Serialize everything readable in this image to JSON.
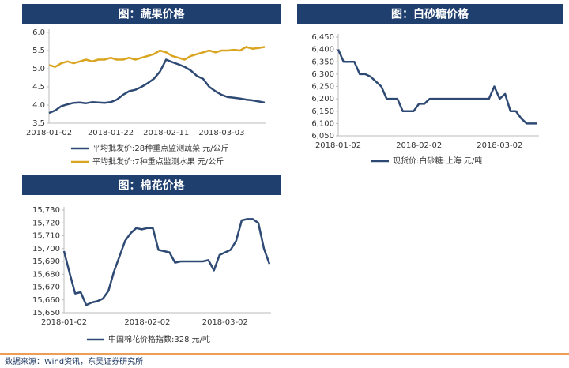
{
  "chart_data": [
    {
      "type": "line",
      "title": "图：蔬果价格",
      "categories": [
        "2018-01-02",
        null,
        null,
        null,
        null,
        null,
        null,
        null,
        null,
        null,
        "2018-01-22",
        null,
        null,
        null,
        null,
        null,
        null,
        null,
        null,
        "2018-02-11",
        null,
        null,
        null,
        null,
        null,
        null,
        null,
        null,
        "2018-03-03",
        null,
        null,
        null,
        null,
        null,
        null,
        null
      ],
      "series": [
        {
          "name": "平均批发价:28种重点监测蔬菜  元/公斤",
          "color": "#2e4a74",
          "values": [
            3.78,
            3.85,
            3.97,
            4.02,
            4.06,
            4.07,
            4.05,
            4.08,
            4.07,
            4.06,
            4.08,
            4.15,
            4.28,
            4.38,
            4.42,
            4.5,
            4.6,
            4.72,
            4.92,
            5.25,
            5.18,
            5.12,
            5.05,
            4.95,
            4.8,
            4.72,
            4.5,
            4.38,
            4.28,
            4.22,
            4.2,
            4.18,
            4.15,
            4.13,
            4.1,
            4.07
          ]
        },
        {
          "name": "平均批发价:7种重点监测水果  元/公斤",
          "color": "#d9a520",
          "values": [
            5.1,
            5.05,
            5.15,
            5.2,
            5.15,
            5.2,
            5.25,
            5.2,
            5.25,
            5.25,
            5.3,
            5.25,
            5.25,
            5.3,
            5.25,
            5.3,
            5.35,
            5.4,
            5.5,
            5.45,
            5.35,
            5.3,
            5.25,
            5.35,
            5.4,
            5.45,
            5.5,
            5.45,
            5.5,
            5.5,
            5.52,
            5.5,
            5.6,
            5.55,
            5.57,
            5.6
          ]
        }
      ],
      "ylim": [
        3.5,
        6.0
      ],
      "yticks": [
        3.5,
        {
          "value": 4,
          "label": "4.0"
        },
        4.5,
        {
          "value": 5,
          "label": "5.0"
        },
        5.5,
        {
          "value": 6,
          "label": "6.0"
        }
      ]
    },
    {
      "type": "line",
      "title": "图：白砂糖价格",
      "categories": [
        "2018-01-02",
        null,
        null,
        null,
        null,
        null,
        null,
        null,
        null,
        null,
        null,
        null,
        null,
        null,
        null,
        "2018-02-02",
        null,
        null,
        null,
        null,
        null,
        null,
        null,
        null,
        null,
        null,
        null,
        null,
        null,
        null,
        "2018-03-02",
        null,
        null,
        null,
        null,
        null,
        null,
        null
      ],
      "series": [
        {
          "name": "现货价:白砂糖:上海  元/吨",
          "color": "#2e4a74",
          "values": [
            6400,
            6350,
            6350,
            6350,
            6300,
            6300,
            6290,
            6270,
            6250,
            6200,
            6200,
            6200,
            6150,
            6150,
            6150,
            6180,
            6180,
            6200,
            6200,
            6200,
            6200,
            6200,
            6200,
            6200,
            6200,
            6200,
            6200,
            6200,
            6200,
            6250,
            6200,
            6220,
            6150,
            6150,
            6120,
            6100,
            6100,
            6100
          ]
        }
      ],
      "ylim": [
        6050,
        6450
      ],
      "yticks": [
        {
          "value": 6050,
          "label": "6,050"
        },
        {
          "value": 6100,
          "label": "6,100"
        },
        {
          "value": 6150,
          "label": "6,150"
        },
        {
          "value": 6200,
          "label": "6,200"
        },
        {
          "value": 6250,
          "label": "6,250"
        },
        {
          "value": 6300,
          "label": "6,300"
        },
        {
          "value": 6350,
          "label": "6,350"
        },
        {
          "value": 6400,
          "label": "6,400"
        },
        {
          "value": 6450,
          "label": "6,450"
        }
      ]
    },
    {
      "type": "line",
      "title": "图：棉花价格",
      "categories": [
        "2018-01-02",
        null,
        null,
        null,
        null,
        null,
        null,
        null,
        null,
        null,
        null,
        null,
        null,
        null,
        null,
        "2018-02-02",
        null,
        null,
        null,
        null,
        null,
        null,
        null,
        null,
        null,
        null,
        null,
        null,
        null,
        "2018-03-02",
        null,
        null,
        null,
        null,
        null,
        null,
        null,
        null
      ],
      "series": [
        {
          "name": "中国棉花价格指数:328  元/吨",
          "color": "#2e4a74",
          "values": [
            15698,
            15681,
            15665,
            15666,
            15656,
            15658,
            15659,
            15661,
            15667,
            15682,
            15694,
            15706,
            15712,
            15716,
            15715,
            15716,
            15716,
            15699,
            15698,
            15697,
            15689,
            15690,
            15690,
            15690,
            15690,
            15690,
            15691,
            15683,
            15695,
            15697,
            15699,
            15706,
            15722,
            15723,
            15723,
            15720,
            15700,
            15688
          ]
        }
      ],
      "ylim": [
        15650,
        15730
      ],
      "yticks": [
        {
          "value": 15650,
          "label": "15,650"
        },
        {
          "value": 15660,
          "label": "15,660"
        },
        {
          "value": 15670,
          "label": "15,670"
        },
        {
          "value": 15680,
          "label": "15,680"
        },
        {
          "value": 15690,
          "label": "15,690"
        },
        {
          "value": 15700,
          "label": "15,700"
        },
        {
          "value": 15710,
          "label": "15,710"
        },
        {
          "value": 15720,
          "label": "15,720"
        },
        {
          "value": 15730,
          "label": "15,730"
        }
      ]
    }
  ],
  "source": "数据来源：Wind资讯，东吴证券研究所"
}
